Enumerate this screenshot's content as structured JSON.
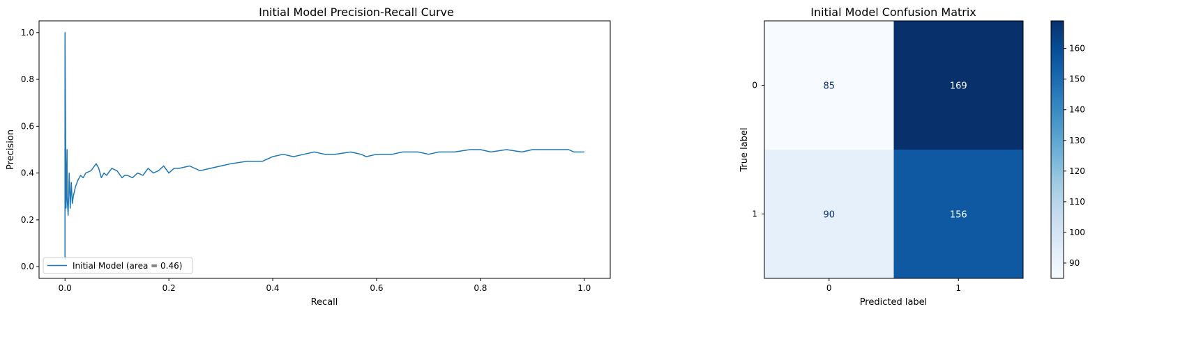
{
  "chart_data": [
    {
      "type": "line",
      "title": "Initial Model Precision-Recall Curve",
      "xlabel": "Recall",
      "ylabel": "Precision",
      "xlim": [
        -0.05,
        1.05
      ],
      "ylim": [
        -0.05,
        1.05
      ],
      "xticks": [
        "0.0",
        "0.2",
        "0.4",
        "0.6",
        "0.8",
        "1.0"
      ],
      "yticks": [
        "0.0",
        "0.2",
        "0.4",
        "0.6",
        "0.8",
        "1.0"
      ],
      "grid": false,
      "legend_position": "lower-left",
      "color": "#1f77b4",
      "series": [
        {
          "name": "Initial Model (area = 0.46)",
          "x": [
            0.0,
            0.0,
            0.002,
            0.004,
            0.004,
            0.006,
            0.008,
            0.01,
            0.012,
            0.014,
            0.016,
            0.02,
            0.025,
            0.03,
            0.035,
            0.04,
            0.05,
            0.06,
            0.065,
            0.07,
            0.075,
            0.08,
            0.09,
            0.1,
            0.11,
            0.115,
            0.12,
            0.13,
            0.14,
            0.15,
            0.16,
            0.17,
            0.18,
            0.19,
            0.2,
            0.21,
            0.22,
            0.24,
            0.26,
            0.28,
            0.3,
            0.32,
            0.35,
            0.38,
            0.4,
            0.42,
            0.44,
            0.46,
            0.48,
            0.5,
            0.52,
            0.55,
            0.57,
            0.58,
            0.6,
            0.63,
            0.65,
            0.68,
            0.7,
            0.72,
            0.75,
            0.78,
            0.8,
            0.82,
            0.85,
            0.88,
            0.9,
            0.92,
            0.95,
            0.97,
            0.98,
            0.99,
            1.0
          ],
          "y": [
            0.03,
            1.0,
            0.25,
            0.5,
            0.3,
            0.22,
            0.4,
            0.25,
            0.36,
            0.27,
            0.3,
            0.34,
            0.37,
            0.39,
            0.38,
            0.4,
            0.41,
            0.44,
            0.42,
            0.38,
            0.4,
            0.39,
            0.42,
            0.41,
            0.38,
            0.39,
            0.39,
            0.38,
            0.4,
            0.39,
            0.42,
            0.4,
            0.41,
            0.43,
            0.4,
            0.42,
            0.42,
            0.43,
            0.41,
            0.42,
            0.43,
            0.44,
            0.45,
            0.45,
            0.47,
            0.48,
            0.47,
            0.48,
            0.49,
            0.48,
            0.48,
            0.49,
            0.48,
            0.47,
            0.48,
            0.48,
            0.49,
            0.49,
            0.48,
            0.49,
            0.49,
            0.5,
            0.5,
            0.49,
            0.5,
            0.49,
            0.5,
            0.5,
            0.5,
            0.5,
            0.49,
            0.49,
            0.49
          ]
        }
      ]
    },
    {
      "type": "heatmap",
      "title": "Initial Model Confusion Matrix",
      "xlabel": "Predicted label",
      "ylabel": "True label",
      "x_categories": [
        "0",
        "1"
      ],
      "y_categories": [
        "0",
        "1"
      ],
      "values": [
        [
          85,
          169
        ],
        [
          90,
          156
        ]
      ],
      "colormap": "Blues",
      "colorbar_range": [
        85,
        169
      ],
      "colorbar_ticks": [
        "90",
        "100",
        "110",
        "120",
        "130",
        "140",
        "150",
        "160"
      ],
      "cell_colors": [
        [
          "#f7fbff",
          "#08306b"
        ],
        [
          "#e6f0fa",
          "#0e59a2"
        ]
      ],
      "cell_text_colors": [
        [
          "#08306b",
          "#ffffff"
        ],
        [
          "#08306b",
          "#ffffff"
        ]
      ]
    }
  ]
}
